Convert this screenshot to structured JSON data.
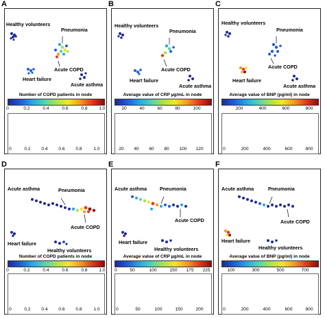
{
  "panels": [
    {
      "label": "A",
      "cb_title": "Number of COPD patients in node",
      "ticks": [
        "0",
        "0.2",
        "0.4",
        "0.6",
        "0.8",
        "1.0"
      ],
      "hist_ticks": [
        "0",
        "0.2",
        "0.4",
        "0.6",
        "0.8",
        "1.0"
      ],
      "annotations": {
        "healthy": "Healthy volunteers",
        "pneumonia": "Pneumonia",
        "copd": "Acute COPD",
        "hf": "Heart failure",
        "asthma": "Acute asthma"
      }
    },
    {
      "label": "B",
      "cb_title": "Average value of CRP µg/mL in node",
      "ticks": [
        "20",
        "40",
        "60",
        "80",
        "100"
      ],
      "hist_ticks": [
        "20",
        "40",
        "60",
        "80",
        "100",
        "120"
      ],
      "annotations": {
        "healthy": "Healthy volunteers",
        "pneumonia": "Pneumonia",
        "copd": "Acute COPD",
        "hf": "Heart failure",
        "asthma": "Acute asthma"
      }
    },
    {
      "label": "C",
      "cb_title": "Average value of BNP (pg/ml) in node",
      "ticks": [
        "200",
        "400",
        "600",
        "800"
      ],
      "hist_ticks": [
        "0",
        "200",
        "400",
        "600",
        "800"
      ],
      "annotations": {
        "healthy": "Healthy volunteers",
        "pneumonia": "Pneumonia",
        "copd": "Acute COPD",
        "hf": "Heart failure",
        "asthma": "Acute asthma"
      }
    },
    {
      "label": "D",
      "cb_title": "Number of COPD patients in node",
      "ticks": [
        "0",
        "0.2",
        "0.4",
        "0.6",
        "0.8",
        "1.0"
      ],
      "hist_ticks": [
        "0",
        "0.2",
        "0.4",
        "0.6",
        "0.8",
        "1.0"
      ],
      "annotations": {
        "asthma": "Acute asthma",
        "pneumonia": "Pneumonia",
        "copd": "Acute COPD",
        "hf": "Heart failure",
        "healthy": "Healthy volunteers"
      }
    },
    {
      "label": "E",
      "cb_title": "Average value of CRP µg/mL in node",
      "ticks": [
        "0",
        "50",
        "100",
        "150",
        "175",
        "225"
      ],
      "hist_ticks": [
        "0",
        "50",
        "100",
        "150",
        "200"
      ],
      "annotations": {
        "asthma": "Acute asthma",
        "pneumonia": "Pneumonia",
        "copd": "Acute COPD",
        "hf": "Heart failure",
        "healthy": "Healthy volunteers"
      }
    },
    {
      "label": "F",
      "cb_title": "Average value of BNP (pg/ml) in node",
      "ticks": [
        "100",
        "300",
        "500",
        "700"
      ],
      "hist_ticks": [
        "0",
        "200",
        "400",
        "600",
        "800"
      ],
      "annotations": {
        "asthma": "Acute asthma",
        "pneumonia": "Pneumonia",
        "copd": "Acute COPD",
        "hf": "Heart failure",
        "healthy": "Healthy volunteers"
      }
    }
  ]
}
